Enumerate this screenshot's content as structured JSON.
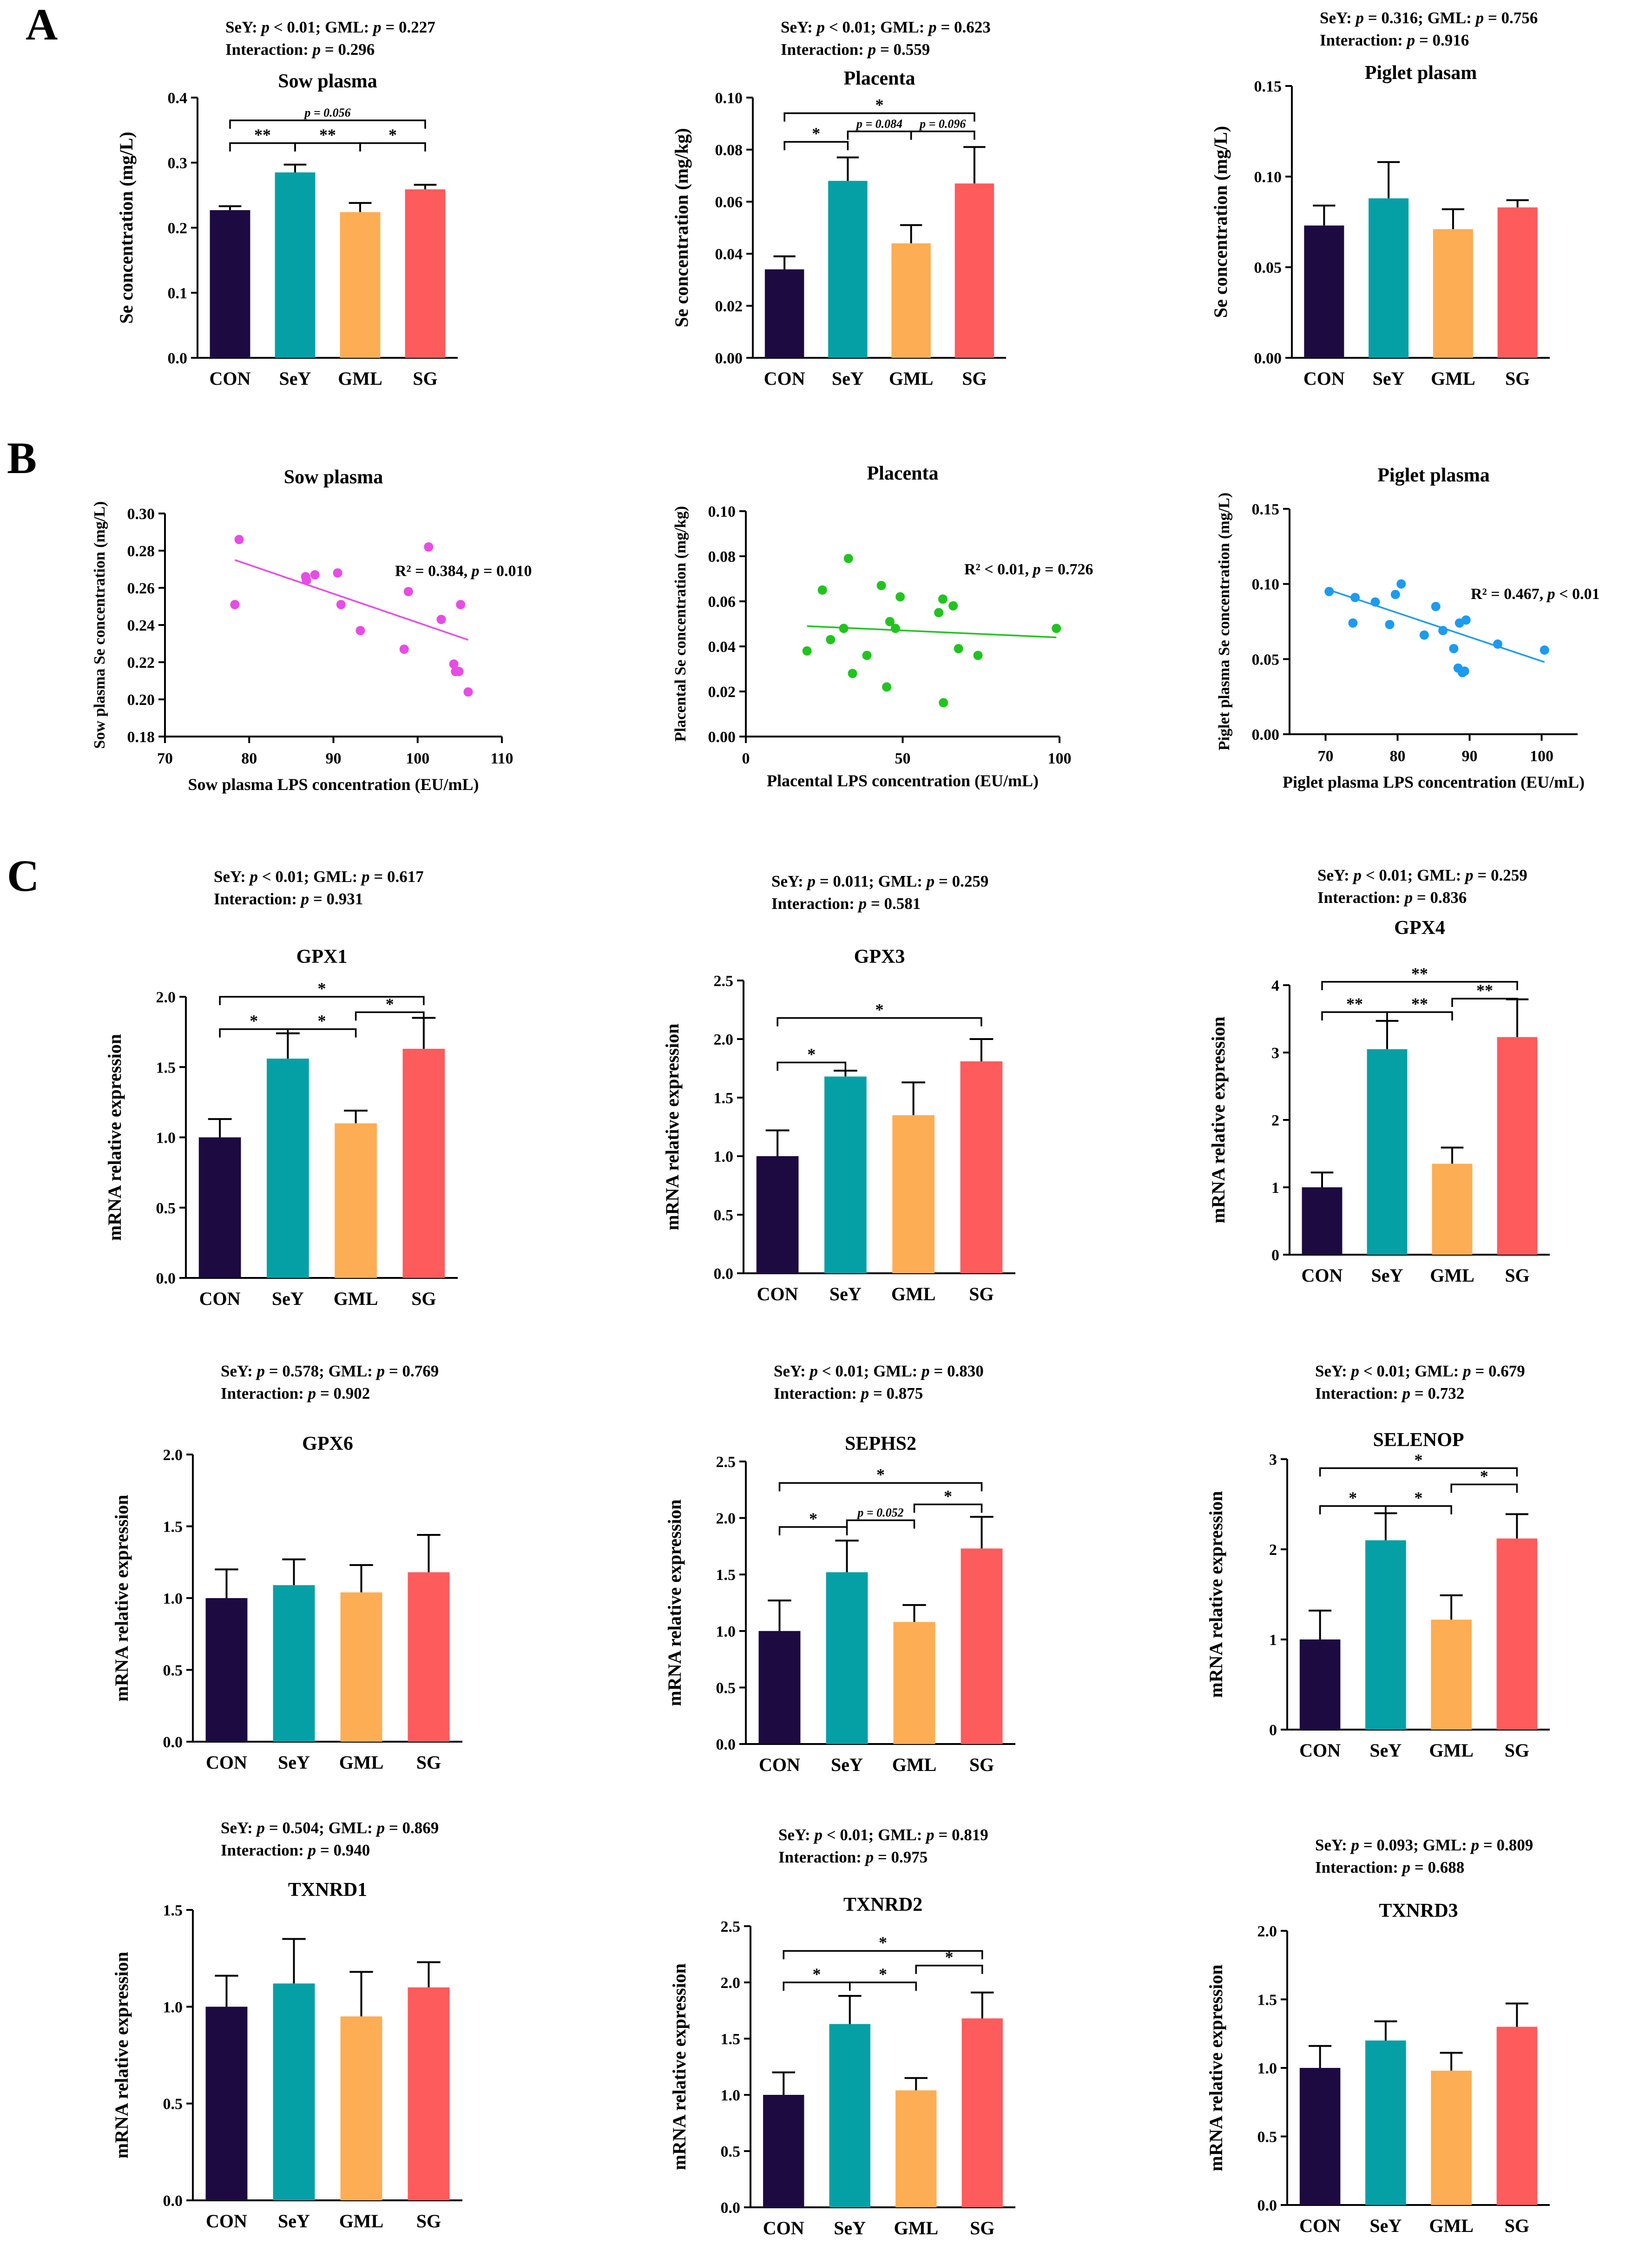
{
  "panel_labels": [
    "A",
    "B",
    "C"
  ],
  "colors": {
    "CON": "#1d0a40",
    "SeY": "#05a0a6",
    "GML": "#fdad54",
    "SG": "#fd5b5c"
  },
  "chart_data": [
    {
      "id": "A1",
      "type": "bar",
      "title": "Sow plasma",
      "ylabel": "Se concentration (mg/L)",
      "categories": [
        "CON",
        "SeY",
        "GML",
        "SG"
      ],
      "values": [
        0.227,
        0.285,
        0.224,
        0.259
      ],
      "errors": [
        0.006,
        0.012,
        0.014,
        0.007
      ],
      "ylim": [
        0,
        0.4
      ],
      "yticks": [
        "0.0",
        "0.1",
        "0.2",
        "0.3",
        "0.4"
      ],
      "stats": [
        "SeY: p < 0.01;  GML: p = 0.227",
        "Interaction: p = 0.296"
      ],
      "sig": [
        {
          "from": 0,
          "to": 3,
          "label": "p = 0.056",
          "y": 0.365
        },
        {
          "from": 0,
          "to": 1,
          "label": "**",
          "y": 0.33
        },
        {
          "from": 1,
          "to": 2,
          "label": "**",
          "y": 0.33
        },
        {
          "from": 2,
          "to": 3,
          "label": "*",
          "y": 0.33
        }
      ]
    },
    {
      "id": "A2",
      "type": "bar",
      "title": "Placenta",
      "ylabel": "Se concentration (mg/kg)",
      "categories": [
        "CON",
        "SeY",
        "GML",
        "SG"
      ],
      "values": [
        0.034,
        0.068,
        0.044,
        0.067
      ],
      "errors": [
        0.005,
        0.009,
        0.007,
        0.014
      ],
      "ylim": [
        0,
        0.1
      ],
      "yticks": [
        "0.00",
        "0.02",
        "0.04",
        "0.06",
        "0.08",
        "0.10"
      ],
      "stats": [
        "SeY: p < 0.01;  GML: p = 0.623",
        "Interaction: p = 0.559"
      ],
      "sig": [
        {
          "from": 0,
          "to": 3,
          "label": "*",
          "y": 0.094
        },
        {
          "from": 0,
          "to": 1,
          "label": "*",
          "y": 0.083
        },
        {
          "from": 1,
          "to": 2,
          "label": "p = 0.084",
          "y": 0.087
        },
        {
          "from": 2,
          "to": 3,
          "label": "p = 0.096",
          "y": 0.087
        }
      ]
    },
    {
      "id": "A3",
      "type": "bar",
      "title": "Piglet plasam",
      "ylabel": "Se concentration (mg/L)",
      "categories": [
        "CON",
        "SeY",
        "GML",
        "SG"
      ],
      "values": [
        0.073,
        0.088,
        0.071,
        0.083
      ],
      "errors": [
        0.011,
        0.02,
        0.011,
        0.004
      ],
      "ylim": [
        0,
        0.15
      ],
      "yticks": [
        "0.00",
        "0.05",
        "0.10",
        "0.15"
      ],
      "stats": [
        "SeY: p = 0.316;  GML: p = 0.756",
        "Interaction: p = 0.916"
      ],
      "sig": []
    },
    {
      "id": "B1",
      "type": "scatter",
      "title": "Sow plasma",
      "ylabel": "Sow plasma Se concentration (mg/L)",
      "xlabel": "Sow plasma  LPS concentration (EU/mL)",
      "xlim": [
        70,
        110
      ],
      "ylim": [
        0.18,
        0.3
      ],
      "xticks": [
        "70",
        "80",
        "90",
        "100",
        "110"
      ],
      "yticks": [
        "0.18",
        "0.20",
        "0.22",
        "0.24",
        "0.26",
        "0.28",
        "0.30"
      ],
      "annotation": "R² = 0.384, p = 0.010",
      "color": "#e84ce6",
      "fit": [
        0.275,
        0.232
      ],
      "x": [
        78.3,
        78.8,
        86.7,
        86.8,
        87.8,
        90.5,
        90.9,
        93.2,
        98.4,
        98.9,
        101.3,
        102.8,
        104.3,
        104.5,
        104.9,
        105.1,
        106.0
      ],
      "y": [
        0.251,
        0.286,
        0.266,
        0.264,
        0.267,
        0.268,
        0.251,
        0.237,
        0.227,
        0.258,
        0.282,
        0.243,
        0.219,
        0.215,
        0.215,
        0.251,
        0.204
      ]
    },
    {
      "id": "B2",
      "type": "scatter",
      "title": "Placenta",
      "ylabel": "Placental Se concentration (mg/kg)",
      "xlabel": "Placental  LPS concentration (EU/mL)",
      "xlim": [
        0,
        100
      ],
      "ylim": [
        0,
        0.1
      ],
      "xticks": [
        "0",
        "50",
        "100"
      ],
      "yticks": [
        "0.00",
        "0.02",
        "0.04",
        "0.06",
        "0.08",
        "0.10"
      ],
      "annotation": "R² < 0.01, p = 0.726",
      "color": "#21c41f",
      "fit": [
        0.049,
        0.044
      ],
      "x": [
        19.5,
        24.4,
        27.0,
        31.2,
        32.7,
        34.0,
        38.6,
        43.2,
        44.9,
        45.9,
        47.7,
        49.2,
        61.5,
        62.8,
        63.0,
        66.1,
        67.8,
        74.0,
        99.0
      ],
      "y": [
        0.038,
        0.065,
        0.043,
        0.048,
        0.079,
        0.028,
        0.036,
        0.067,
        0.022,
        0.051,
        0.048,
        0.062,
        0.055,
        0.061,
        0.015,
        0.058,
        0.039,
        0.036,
        0.048
      ]
    },
    {
      "id": "B3",
      "type": "scatter",
      "title": "Piglet plasma",
      "ylabel": "Piglet plasma Se concentration (mg/L)",
      "xlabel": "Piglet plasma  LPS concentration (EU/mL)",
      "xlim": [
        65,
        105
      ],
      "ylim": [
        0,
        0.15
      ],
      "xticks": [
        "70",
        "80",
        "90",
        "100"
      ],
      "yticks": [
        "0.00",
        "0.05",
        "0.10",
        "0.15"
      ],
      "annotation": "R² = 0.467, p < 0.01",
      "color": "#1c9bf0",
      "fit": [
        0.096,
        0.048
      ],
      "x": [
        70.5,
        73.8,
        74.1,
        76.9,
        78.9,
        79.7,
        80.5,
        83.7,
        85.3,
        86.3,
        87.8,
        88.4,
        88.6,
        89.0,
        89.3,
        89.5,
        93.9,
        100.4
      ],
      "y": [
        0.095,
        0.074,
        0.091,
        0.088,
        0.073,
        0.093,
        0.1,
        0.066,
        0.085,
        0.069,
        0.057,
        0.044,
        0.074,
        0.041,
        0.042,
        0.076,
        0.06,
        0.056
      ]
    },
    {
      "id": "C1",
      "type": "bar",
      "title": "GPX1",
      "ylabel": "mRNA relative expression",
      "categories": [
        "CON",
        "SeY",
        "GML",
        "SG"
      ],
      "values": [
        1.0,
        1.56,
        1.1,
        1.63
      ],
      "errors": [
        0.13,
        0.18,
        0.09,
        0.22
      ],
      "ylim": [
        0,
        2.0
      ],
      "yticks": [
        "0.0",
        "0.5",
        "1.0",
        "1.5",
        "2.0"
      ],
      "stats": [
        "SeY: p < 0.01;  GML: p = 0.617",
        "Interaction: p  = 0.931"
      ],
      "sig": [
        {
          "from": 0,
          "to": 3,
          "label": "*",
          "y": 2.0
        },
        {
          "from": 0,
          "to": 1,
          "label": "*",
          "y": 1.77
        },
        {
          "from": 1,
          "to": 2,
          "label": "*",
          "y": 1.77
        },
        {
          "from": 2,
          "to": 3,
          "label": "*",
          "y": 1.89
        }
      ]
    },
    {
      "id": "C2",
      "type": "bar",
      "title": "GPX3",
      "ylabel": "mRNA relative expression",
      "categories": [
        "CON",
        "SeY",
        "GML",
        "SG"
      ],
      "values": [
        1.0,
        1.68,
        1.35,
        1.81
      ],
      "errors": [
        0.22,
        0.05,
        0.28,
        0.19
      ],
      "ylim": [
        0,
        2.5
      ],
      "yticks": [
        "0.0",
        "0.5",
        "1.0",
        "1.5",
        "2.0",
        "2.5"
      ],
      "stats": [
        "SeY: p = 0.011; GML: p = 0.259",
        "Interaction: p = 0.581"
      ],
      "sig": [
        {
          "from": 0,
          "to": 3,
          "label": "*",
          "y": 2.18
        },
        {
          "from": 0,
          "to": 1,
          "label": "*",
          "y": 1.8
        }
      ]
    },
    {
      "id": "C3",
      "type": "bar",
      "title": "GPX4",
      "ylabel": "mRNA relative expression",
      "categories": [
        "CON",
        "SeY",
        "GML",
        "SG"
      ],
      "values": [
        1.0,
        3.05,
        1.35,
        3.23
      ],
      "errors": [
        0.22,
        0.42,
        0.24,
        0.56
      ],
      "ylim": [
        0,
        4
      ],
      "yticks": [
        "0",
        "1",
        "2",
        "3",
        "4"
      ],
      "stats": [
        "SeY: p < 0.01; GML: p = 0.259",
        "Interaction: p = 0.836"
      ],
      "sig": [
        {
          "from": 0,
          "to": 3,
          "label": "**",
          "y": 4.05
        },
        {
          "from": 0,
          "to": 1,
          "label": "**",
          "y": 3.6
        },
        {
          "from": 1,
          "to": 2,
          "label": "**",
          "y": 3.6
        },
        {
          "from": 2,
          "to": 3,
          "label": "**",
          "y": 3.8
        }
      ]
    },
    {
      "id": "C4",
      "type": "bar",
      "title": "GPX6",
      "ylabel": "mRNA relative expression",
      "categories": [
        "CON",
        "SeY",
        "GML",
        "SG"
      ],
      "values": [
        1.0,
        1.09,
        1.04,
        1.18
      ],
      "errors": [
        0.2,
        0.18,
        0.19,
        0.26
      ],
      "ylim": [
        0,
        2.0
      ],
      "yticks": [
        "0.0",
        "0.5",
        "1.0",
        "1.5",
        "2.0"
      ],
      "stats": [
        "SeY: p = 0.578; GML: p = 0.769",
        "Interaction: p = 0.902"
      ],
      "sig": []
    },
    {
      "id": "C5",
      "type": "bar",
      "title": "SEPHS2",
      "ylabel": "mRNA relative expression",
      "categories": [
        "CON",
        "SeY",
        "GML",
        "SG"
      ],
      "values": [
        1.0,
        1.52,
        1.08,
        1.73
      ],
      "errors": [
        0.27,
        0.28,
        0.15,
        0.28
      ],
      "ylim": [
        0,
        2.5
      ],
      "yticks": [
        "0.0",
        "0.5",
        "1.0",
        "1.5",
        "2.0",
        "2.5"
      ],
      "stats": [
        "SeY: p < 0.01; GML: p = 0.830",
        "Interaction: p = 0.875"
      ],
      "sig": [
        {
          "from": 0,
          "to": 3,
          "label": "*",
          "y": 2.31
        },
        {
          "from": 0,
          "to": 1,
          "label": "*",
          "y": 1.92
        },
        {
          "from": 1,
          "to": 2,
          "label": "p = 0.052",
          "y": 1.98
        },
        {
          "from": 2,
          "to": 3,
          "label": "*",
          "y": 2.12
        }
      ]
    },
    {
      "id": "C6",
      "type": "bar",
      "title": "SELENOP",
      "ylabel": "mRNA relative expression",
      "categories": [
        "CON",
        "SeY",
        "GML",
        "SG"
      ],
      "values": [
        1.0,
        2.1,
        1.22,
        2.12
      ],
      "errors": [
        0.32,
        0.3,
        0.27,
        0.27
      ],
      "ylim": [
        0,
        3
      ],
      "yticks": [
        "0",
        "1",
        "2",
        "3"
      ],
      "stats": [
        "SeY: p < 0.01; GML: p = 0.679",
        "Interaction: p = 0.732"
      ],
      "sig": [
        {
          "from": 0,
          "to": 3,
          "label": "*",
          "y": 2.9
        },
        {
          "from": 0,
          "to": 1,
          "label": "*",
          "y": 2.48
        },
        {
          "from": 1,
          "to": 2,
          "label": "*",
          "y": 2.48
        },
        {
          "from": 2,
          "to": 3,
          "label": "*",
          "y": 2.72
        }
      ]
    },
    {
      "id": "C7",
      "type": "bar",
      "title": "TXNRD1",
      "ylabel": "mRNA relative expression",
      "categories": [
        "CON",
        "SeY",
        "GML",
        "SG"
      ],
      "values": [
        1.0,
        1.12,
        0.95,
        1.1
      ],
      "errors": [
        0.16,
        0.23,
        0.23,
        0.13
      ],
      "ylim": [
        0,
        1.5
      ],
      "yticks": [
        "0.0",
        "0.5",
        "1.0",
        "1.5"
      ],
      "stats": [
        "SeY: p = 0.504; GML: p = 0.869",
        "Interaction: p = 0.940"
      ],
      "sig": []
    },
    {
      "id": "C8",
      "type": "bar",
      "title": "TXNRD2",
      "ylabel": "mRNA relative expression",
      "categories": [
        "CON",
        "SeY",
        "GML",
        "SG"
      ],
      "values": [
        1.0,
        1.63,
        1.04,
        1.68
      ],
      "errors": [
        0.2,
        0.25,
        0.11,
        0.23
      ],
      "ylim": [
        0,
        2.5
      ],
      "yticks": [
        "0.0",
        "0.5",
        "1.0",
        "1.5",
        "2.0",
        "2.5"
      ],
      "stats": [
        "SeY: p < 0.01; GML: p = 0.819",
        "Interaction: p = 0.975"
      ],
      "sig": [
        {
          "from": 0,
          "to": 3,
          "label": "*",
          "y": 2.28
        },
        {
          "from": 0,
          "to": 1,
          "label": "*",
          "y": 2.0
        },
        {
          "from": 1,
          "to": 2,
          "label": "*",
          "y": 2.0
        },
        {
          "from": 2,
          "to": 3,
          "label": "*",
          "y": 2.15
        }
      ]
    },
    {
      "id": "C9",
      "type": "bar",
      "title": "TXNRD3",
      "ylabel": "mRNA relative expression",
      "categories": [
        "CON",
        "SeY",
        "GML",
        "SG"
      ],
      "values": [
        1.0,
        1.2,
        0.98,
        1.3
      ],
      "errors": [
        0.16,
        0.14,
        0.13,
        0.17
      ],
      "ylim": [
        0,
        2.0
      ],
      "yticks": [
        "0.0",
        "0.5",
        "1.0",
        "1.5",
        "2.0"
      ],
      "stats": [
        "SeY: p = 0.093; GML: p = 0.809",
        "Interaction: p = 0.688"
      ],
      "sig": []
    }
  ]
}
